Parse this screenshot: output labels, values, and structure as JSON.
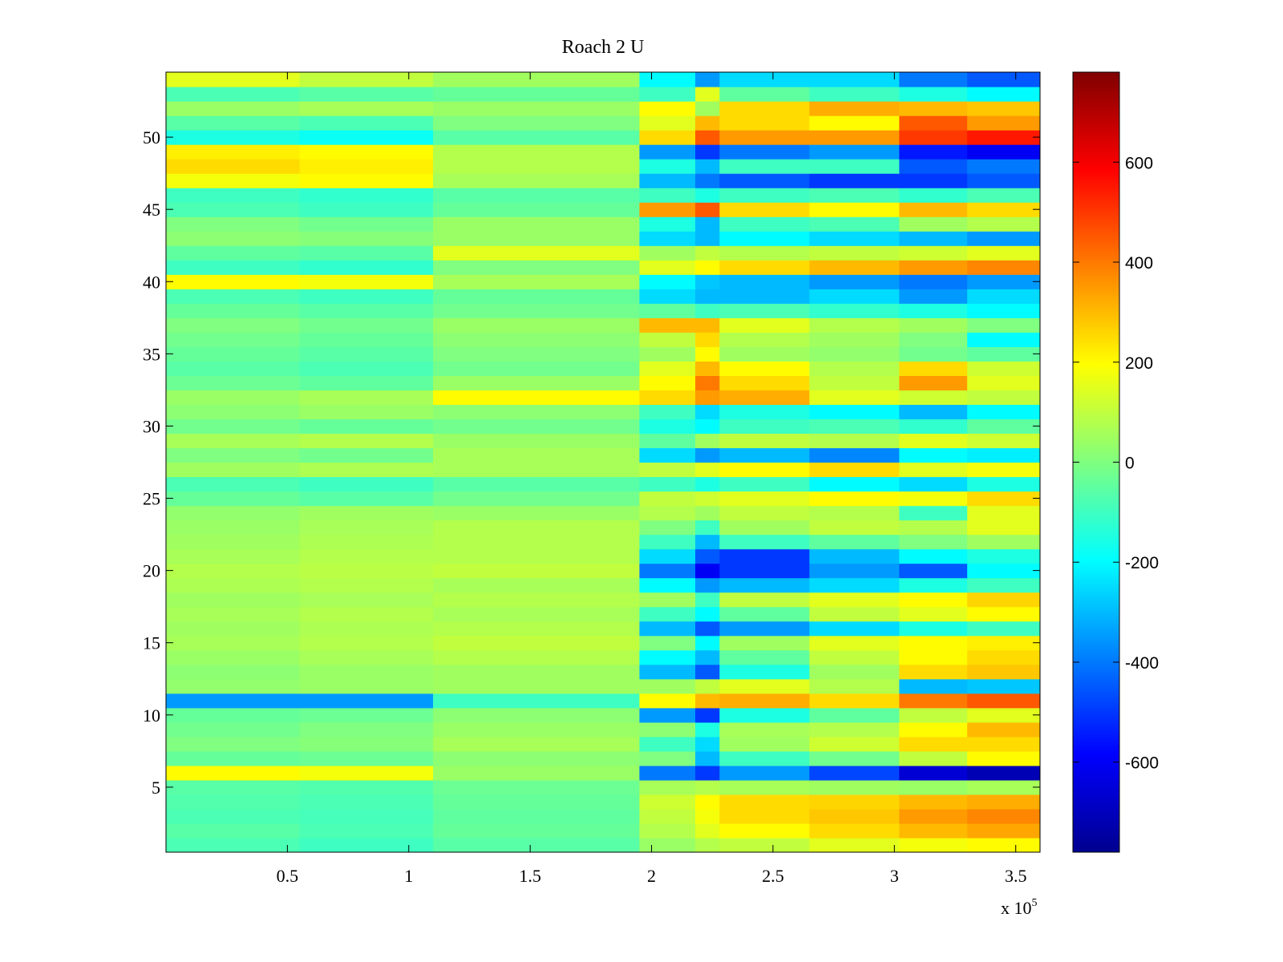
{
  "chart_data": {
    "type": "heatmap",
    "title": "Roach 2 U",
    "xlabel": "",
    "ylabel": "",
    "x_range": [
      0,
      360000
    ],
    "y_range": [
      0.5,
      54.5
    ],
    "x_multiplier_label": "x 10",
    "x_multiplier_exponent": "5",
    "x_ticks": [
      {
        "value": 50000,
        "label": "0.5"
      },
      {
        "value": 100000,
        "label": "1"
      },
      {
        "value": 150000,
        "label": "1.5"
      },
      {
        "value": 200000,
        "label": "2"
      },
      {
        "value": 250000,
        "label": "2.5"
      },
      {
        "value": 300000,
        "label": "3"
      },
      {
        "value": 350000,
        "label": "3.5"
      }
    ],
    "y_ticks": [
      {
        "value": 5,
        "label": "5"
      },
      {
        "value": 10,
        "label": "10"
      },
      {
        "value": 15,
        "label": "15"
      },
      {
        "value": 20,
        "label": "20"
      },
      {
        "value": 25,
        "label": "25"
      },
      {
        "value": 30,
        "label": "30"
      },
      {
        "value": 35,
        "label": "35"
      },
      {
        "value": 40,
        "label": "40"
      },
      {
        "value": 45,
        "label": "45"
      },
      {
        "value": 50,
        "label": "50"
      }
    ],
    "colorbar": {
      "range": [
        -780,
        780
      ],
      "colormap": "jet",
      "ticks": [
        {
          "value": 600,
          "label": "600"
        },
        {
          "value": 400,
          "label": "400"
        },
        {
          "value": 200,
          "label": "200"
        },
        {
          "value": 0,
          "label": "0"
        },
        {
          "value": -200,
          "label": "-200"
        },
        {
          "value": -400,
          "label": "-400"
        },
        {
          "value": -600,
          "label": "-600"
        }
      ]
    },
    "x_segments": [
      0,
      55000,
      110000,
      195000,
      218000,
      228000,
      265000,
      302000,
      330000,
      360000
    ],
    "rows": [
      {
        "row": 1,
        "values": [
          -80,
          -100,
          -60,
          40,
          80,
          100,
          150,
          180,
          200
        ]
      },
      {
        "row": 2,
        "values": [
          -60,
          -80,
          -40,
          80,
          150,
          200,
          250,
          300,
          330
        ]
      },
      {
        "row": 3,
        "values": [
          -80,
          -90,
          -50,
          100,
          180,
          250,
          280,
          350,
          380
        ]
      },
      {
        "row": 4,
        "values": [
          -70,
          -80,
          -40,
          120,
          200,
          250,
          260,
          300,
          320
        ]
      },
      {
        "row": 5,
        "values": [
          -60,
          -70,
          -30,
          60,
          80,
          60,
          50,
          40,
          60
        ]
      },
      {
        "row": 6,
        "values": [
          200,
          180,
          40,
          -400,
          -500,
          -350,
          -480,
          -650,
          -700
        ]
      },
      {
        "row": 7,
        "values": [
          -40,
          -30,
          20,
          0,
          -300,
          -100,
          -20,
          100,
          200
        ]
      },
      {
        "row": 8,
        "values": [
          0,
          10,
          60,
          -100,
          -250,
          50,
          120,
          250,
          250
        ]
      },
      {
        "row": 9,
        "values": [
          -20,
          0,
          40,
          20,
          -150,
          60,
          80,
          200,
          300
        ]
      },
      {
        "row": 10,
        "values": [
          -40,
          -30,
          20,
          -350,
          -500,
          -150,
          -50,
          100,
          150
        ]
      },
      {
        "row": 11,
        "values": [
          -350,
          -350,
          -100,
          200,
          300,
          320,
          250,
          400,
          450
        ]
      },
      {
        "row": 12,
        "values": [
          30,
          40,
          50,
          50,
          100,
          150,
          80,
          -300,
          -280
        ]
      },
      {
        "row": 13,
        "values": [
          20,
          40,
          50,
          -300,
          -450,
          -150,
          50,
          250,
          280
        ]
      },
      {
        "row": 14,
        "values": [
          40,
          60,
          80,
          -200,
          -300,
          -50,
          100,
          200,
          250
        ]
      },
      {
        "row": 15,
        "values": [
          60,
          80,
          100,
          0,
          -200,
          50,
          150,
          200,
          220
        ]
      },
      {
        "row": 16,
        "values": [
          50,
          70,
          80,
          -300,
          -450,
          -350,
          -250,
          -150,
          -100
        ]
      },
      {
        "row": 17,
        "values": [
          60,
          80,
          60,
          -100,
          -200,
          -50,
          100,
          150,
          200
        ]
      },
      {
        "row": 18,
        "values": [
          50,
          60,
          80,
          50,
          -100,
          100,
          150,
          200,
          260
        ]
      },
      {
        "row": 19,
        "values": [
          70,
          80,
          60,
          -200,
          -350,
          -300,
          -250,
          -150,
          -100
        ]
      },
      {
        "row": 20,
        "values": [
          80,
          90,
          100,
          -400,
          -600,
          -500,
          -350,
          -450,
          -200
        ]
      },
      {
        "row": 21,
        "values": [
          60,
          80,
          80,
          -250,
          -450,
          -500,
          -300,
          -200,
          -150
        ]
      },
      {
        "row": 22,
        "values": [
          50,
          70,
          80,
          -100,
          -300,
          -100,
          -50,
          0,
          50
        ]
      },
      {
        "row": 23,
        "values": [
          40,
          60,
          80,
          0,
          -100,
          50,
          100,
          80,
          150
        ]
      },
      {
        "row": 24,
        "values": [
          30,
          50,
          40,
          80,
          50,
          100,
          80,
          -100,
          150
        ]
      },
      {
        "row": 25,
        "values": [
          -40,
          -60,
          -20,
          100,
          120,
          150,
          200,
          180,
          250
        ]
      },
      {
        "row": 26,
        "values": [
          -80,
          -100,
          -60,
          -100,
          -150,
          -100,
          -200,
          -250,
          -150
        ]
      },
      {
        "row": 27,
        "values": [
          50,
          70,
          60,
          100,
          150,
          200,
          250,
          150,
          180
        ]
      },
      {
        "row": 28,
        "values": [
          0,
          -20,
          60,
          -250,
          -350,
          -300,
          -380,
          -200,
          -220
        ]
      },
      {
        "row": 29,
        "values": [
          60,
          80,
          40,
          -50,
          50,
          100,
          80,
          150,
          120
        ]
      },
      {
        "row": 30,
        "values": [
          -20,
          -40,
          -20,
          -150,
          -200,
          -100,
          -80,
          -120,
          -50
        ]
      },
      {
        "row": 31,
        "values": [
          20,
          40,
          20,
          -100,
          -250,
          -150,
          -200,
          -300,
          -200
        ]
      },
      {
        "row": 32,
        "values": [
          40,
          60,
          200,
          250,
          350,
          320,
          150,
          120,
          100
        ]
      },
      {
        "row": 33,
        "values": [
          -30,
          -50,
          40,
          200,
          400,
          250,
          100,
          350,
          150
        ]
      },
      {
        "row": 34,
        "values": [
          -60,
          -80,
          -20,
          150,
          300,
          200,
          80,
          250,
          120
        ]
      },
      {
        "row": 35,
        "values": [
          -40,
          -60,
          0,
          50,
          200,
          50,
          30,
          -20,
          -50
        ]
      },
      {
        "row": 36,
        "values": [
          -20,
          -40,
          20,
          100,
          250,
          80,
          50,
          0,
          -200
        ]
      },
      {
        "row": 37,
        "values": [
          0,
          -20,
          40,
          300,
          300,
          150,
          80,
          50,
          0
        ]
      },
      {
        "row": 38,
        "values": [
          -40,
          -60,
          -20,
          -50,
          -100,
          -80,
          -120,
          -150,
          -200
        ]
      },
      {
        "row": 39,
        "values": [
          -80,
          -100,
          -40,
          -250,
          -300,
          -300,
          -250,
          -350,
          -250
        ]
      },
      {
        "row": 40,
        "values": [
          200,
          180,
          60,
          -200,
          -280,
          -300,
          -350,
          -400,
          -350
        ]
      },
      {
        "row": 41,
        "values": [
          -100,
          -120,
          0,
          150,
          200,
          250,
          300,
          350,
          380
        ]
      },
      {
        "row": 42,
        "values": [
          -50,
          -60,
          150,
          50,
          100,
          80,
          100,
          120,
          150
        ]
      },
      {
        "row": 43,
        "values": [
          20,
          10,
          40,
          -250,
          -300,
          -200,
          -250,
          -300,
          -350
        ]
      },
      {
        "row": 44,
        "values": [
          0,
          -20,
          40,
          -150,
          -300,
          -100,
          -80,
          50,
          80
        ]
      },
      {
        "row": 45,
        "values": [
          -80,
          -100,
          -40,
          350,
          450,
          250,
          200,
          300,
          250
        ]
      },
      {
        "row": 46,
        "values": [
          -100,
          -120,
          -60,
          -100,
          -150,
          -100,
          -80,
          -120,
          -80
        ]
      },
      {
        "row": 47,
        "values": [
          180,
          200,
          60,
          -300,
          -400,
          -450,
          -500,
          -500,
          -450
        ]
      },
      {
        "row": 48,
        "values": [
          250,
          220,
          80,
          -150,
          -300,
          -100,
          -100,
          -450,
          -400
        ]
      },
      {
        "row": 49,
        "values": [
          220,
          200,
          80,
          -350,
          -500,
          -400,
          -350,
          -550,
          -600
        ]
      },
      {
        "row": 50,
        "values": [
          -150,
          -180,
          -60,
          250,
          450,
          350,
          350,
          500,
          550
        ]
      },
      {
        "row": 51,
        "values": [
          -60,
          -80,
          0,
          150,
          300,
          250,
          200,
          450,
          350
        ]
      },
      {
        "row": 52,
        "values": [
          40,
          60,
          40,
          200,
          50,
          250,
          320,
          300,
          280
        ]
      },
      {
        "row": 53,
        "values": [
          -80,
          -60,
          -40,
          -100,
          150,
          -50,
          -100,
          -150,
          -200
        ]
      },
      {
        "row": 54,
        "values": [
          150,
          100,
          50,
          -200,
          -350,
          -250,
          -250,
          -400,
          -450
        ]
      }
    ]
  }
}
